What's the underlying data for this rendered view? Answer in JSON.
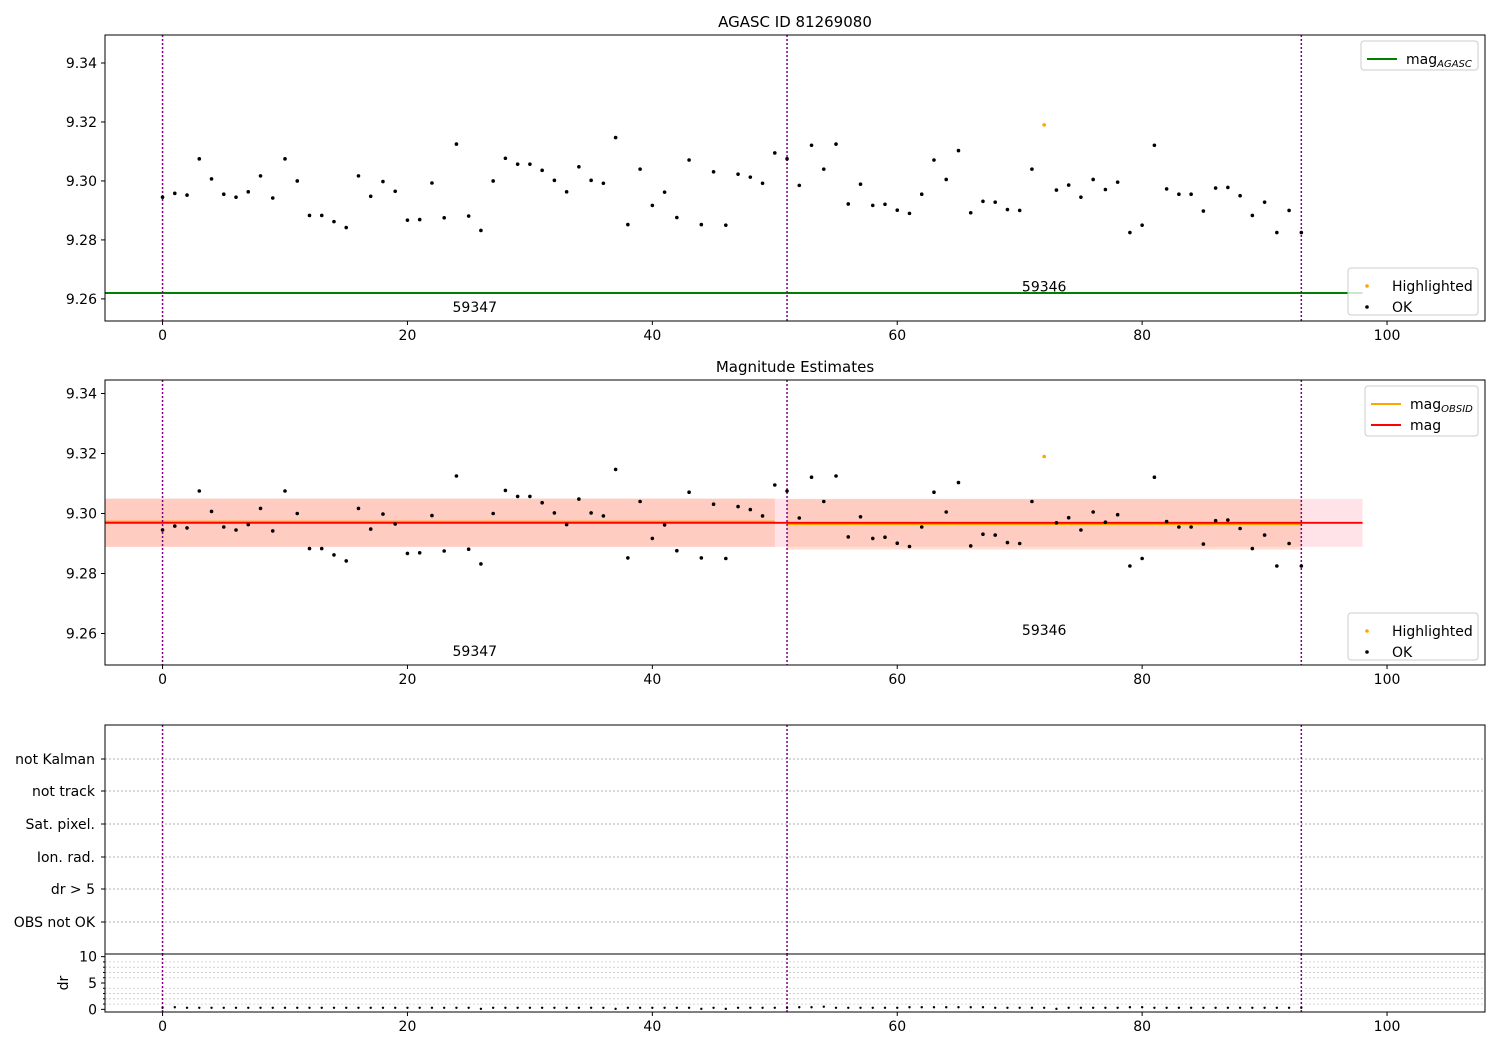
{
  "chart_data": [
    {
      "type": "scatter",
      "title": "AGASC ID 81269080",
      "xlabel": "",
      "ylabel": "",
      "xlim": [
        -4.7,
        108
      ],
      "ylim": [
        9.2525,
        9.3495
      ],
      "xticks": [
        0,
        20,
        40,
        60,
        80,
        100
      ],
      "yticks": [
        9.26,
        9.28,
        9.3,
        9.32,
        9.34
      ],
      "ytick_labels": [
        "9.26",
        "9.28",
        "9.30",
        "9.32",
        "9.34"
      ],
      "obs_boundaries": [
        0,
        51,
        93
      ],
      "obs_labels": [
        {
          "text": "59347",
          "x": 25.5,
          "y": 9.2555
        },
        {
          "text": "59346",
          "x": 72,
          "y": 9.2625
        }
      ],
      "series": [
        {
          "name": "mag_AGASC",
          "kind": "hline",
          "y": 9.262,
          "x_range": [
            -4.7,
            98
          ],
          "color": "#008000"
        },
        {
          "name": "OK",
          "kind": "points",
          "color": "#000000",
          "values": []
        },
        {
          "name": "Highlighted",
          "kind": "points",
          "color": "#ffa500",
          "values": [
            [
              72,
              9.319
            ]
          ]
        }
      ],
      "legends": [
        {
          "position": "top-right",
          "entries": [
            {
              "kind": "line",
              "color": "#008000",
              "label": "mag",
              "sub": "AGASC"
            }
          ]
        },
        {
          "position": "bottom-right",
          "entries": [
            {
              "kind": "dot",
              "color": "#ffa500",
              "label": "Highlighted"
            },
            {
              "kind": "dot",
              "color": "#000000",
              "label": "OK"
            }
          ]
        }
      ]
    },
    {
      "type": "scatter",
      "title": "Magnitude Estimates",
      "xlabel": "",
      "ylabel": "",
      "xlim": [
        -4.7,
        108
      ],
      "ylim": [
        9.2495,
        9.3445
      ],
      "xticks": [
        0,
        20,
        40,
        60,
        80,
        100
      ],
      "yticks": [
        9.26,
        9.28,
        9.3,
        9.32,
        9.34
      ],
      "ytick_labels": [
        "9.26",
        "9.28",
        "9.30",
        "9.32",
        "9.34"
      ],
      "obs_boundaries": [
        0,
        51,
        93
      ],
      "obs_labels": [
        {
          "text": "59347",
          "x": 25.5,
          "y": 9.2525
        },
        {
          "text": "59346",
          "x": 72,
          "y": 9.2595
        }
      ],
      "bands": [
        {
          "x_range": [
            -4.7,
            98
          ],
          "y_range": [
            9.2889,
            9.3049
          ],
          "color": "#ffc0cb",
          "opacity": 0.45
        },
        {
          "x_range": [
            -4.7,
            50
          ],
          "y_range": [
            9.2889,
            9.305
          ],
          "color": "#ffa07a",
          "opacity": 0.35
        },
        {
          "x_range": [
            51,
            93
          ],
          "y_range": [
            9.288,
            9.3048
          ],
          "color": "#ffa07a",
          "opacity": 0.35
        }
      ],
      "series": [
        {
          "name": "mag_OBSID",
          "kind": "segments",
          "color": "#ffa500",
          "segments": [
            [
              -4.7,
              50,
              9.2972
            ],
            [
              51,
              93,
              9.2966
            ]
          ]
        },
        {
          "name": "mag",
          "kind": "hline",
          "y": 9.2969,
          "x_range": [
            -4.7,
            98
          ],
          "color": "#ff0000"
        },
        {
          "name": "OK",
          "kind": "points",
          "color": "#000000",
          "values": []
        },
        {
          "name": "Highlighted",
          "kind": "points",
          "color": "#ffa500",
          "values": [
            [
              72,
              9.319
            ]
          ]
        }
      ],
      "legends": [
        {
          "position": "top-right",
          "entries": [
            {
              "kind": "line",
              "color": "#ffa500",
              "label": "mag",
              "sub": "OBSID"
            },
            {
              "kind": "line",
              "color": "#ff0000",
              "label": "mag",
              "sub": ""
            }
          ]
        },
        {
          "position": "bottom-right",
          "entries": [
            {
              "kind": "dot",
              "color": "#ffa500",
              "label": "Highlighted"
            },
            {
              "kind": "dot",
              "color": "#000000",
              "label": "OK"
            }
          ]
        }
      ]
    },
    {
      "type": "scatter",
      "title": "",
      "xlabel": "",
      "ylabel": "",
      "categories": [
        "not Kalman",
        "not track",
        "Sat. pixel.",
        "Ion. rad.",
        "dr > 5",
        "OBS not OK"
      ],
      "xlim": [
        -4.7,
        108
      ],
      "grid": true,
      "obs_boundaries": [
        0,
        51,
        93
      ],
      "series": []
    },
    {
      "type": "scatter",
      "title": "",
      "xlabel": "",
      "ylabel": "dr",
      "xlim": [
        -4.7,
        108
      ],
      "ylim": [
        -0.5,
        10.5
      ],
      "xticks": [
        0,
        20,
        40,
        60,
        80,
        100
      ],
      "yticks": [
        0,
        5,
        10
      ],
      "obs_boundaries": [
        0,
        51,
        93
      ],
      "series": [
        {
          "name": "dr",
          "kind": "points",
          "color": "#000000",
          "values": [
            0.3,
            0.4,
            0.3,
            0.3,
            0.3,
            0.3,
            0.3,
            0.3,
            0.3,
            0.3,
            0.3,
            0.3,
            0.3,
            0.3,
            0.3,
            0.3,
            0.3,
            0.3,
            0.3,
            0.3,
            0.3,
            0.3,
            0.3,
            0.3,
            0.3,
            0.3,
            0.1,
            0.3,
            0.3,
            0.3,
            0.3,
            0.3,
            0.3,
            0.3,
            0.3,
            0.3,
            0.3,
            0.1,
            0.3,
            0.3,
            0.3,
            0.3,
            0.3,
            0.3,
            0.1,
            0.3,
            0.1,
            0.3,
            0.3,
            0.3,
            0.3,
            0.3,
            0.4,
            0.4,
            0.5,
            0.3,
            0.3,
            0.3,
            0.3,
            0.3,
            0.3,
            0.4,
            0.4,
            0.4,
            0.4,
            0.4,
            0.4,
            0.4,
            0.3,
            0.3,
            0.3,
            0.3,
            0.3,
            0.1,
            0.3,
            0.3,
            0.3,
            0.3,
            0.3,
            0.4,
            0.4,
            0.3,
            0.3,
            0.3,
            0.3,
            0.3,
            0.3,
            0.3,
            0.3,
            0.3,
            0.3,
            0.3,
            0.3,
            0.3
          ]
        }
      ]
    }
  ]
}
